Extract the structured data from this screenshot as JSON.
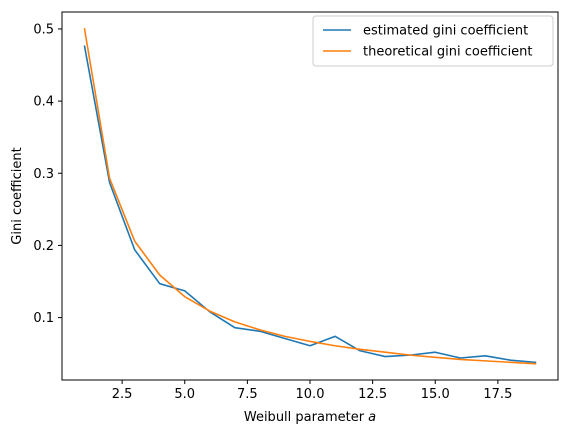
{
  "chart_data": {
    "type": "line",
    "xlabel": "Weibull parameter a",
    "xlabel_main": "Weibull parameter ",
    "xlabel_math": "a",
    "ylabel": "Gini coefficient",
    "xlim": [
      0.1,
      19.9
    ],
    "ylim": [
      0.0135,
      0.5235
    ],
    "xticks": [
      2.5,
      5.0,
      7.5,
      10.0,
      12.5,
      15.0,
      17.5
    ],
    "xtick_labels": [
      "2.5",
      "5.0",
      "7.5",
      "10.0",
      "12.5",
      "15.0",
      "17.5"
    ],
    "yticks": [
      0.1,
      0.2,
      0.3,
      0.4,
      0.5
    ],
    "ytick_labels": [
      "0.1",
      "0.2",
      "0.3",
      "0.4",
      "0.5"
    ],
    "grid": false,
    "legend_position": "top-right",
    "series": [
      {
        "name": "estimated gini coefficient",
        "color": "#1f77b4",
        "x": [
          1,
          2,
          3,
          4,
          5,
          6,
          7,
          8,
          9,
          10,
          11,
          12,
          13,
          14,
          15,
          16,
          17,
          18,
          19
        ],
        "values": [
          0.476,
          0.287,
          0.194,
          0.147,
          0.137,
          0.108,
          0.086,
          0.081,
          0.071,
          0.061,
          0.074,
          0.054,
          0.046,
          0.048,
          0.052,
          0.044,
          0.047,
          0.041,
          0.038
        ]
      },
      {
        "name": "theoretical gini coefficient",
        "color": "#ff7f0e",
        "x": [
          1,
          2,
          3,
          4,
          5,
          6,
          7,
          8,
          9,
          10,
          11,
          12,
          13,
          14,
          15,
          16,
          17,
          18,
          19
        ],
        "values": [
          0.5,
          0.293,
          0.206,
          0.159,
          0.129,
          0.109,
          0.094,
          0.083,
          0.074,
          0.067,
          0.061,
          0.056,
          0.052,
          0.048,
          0.045,
          0.042,
          0.04,
          0.038,
          0.036
        ]
      }
    ]
  }
}
